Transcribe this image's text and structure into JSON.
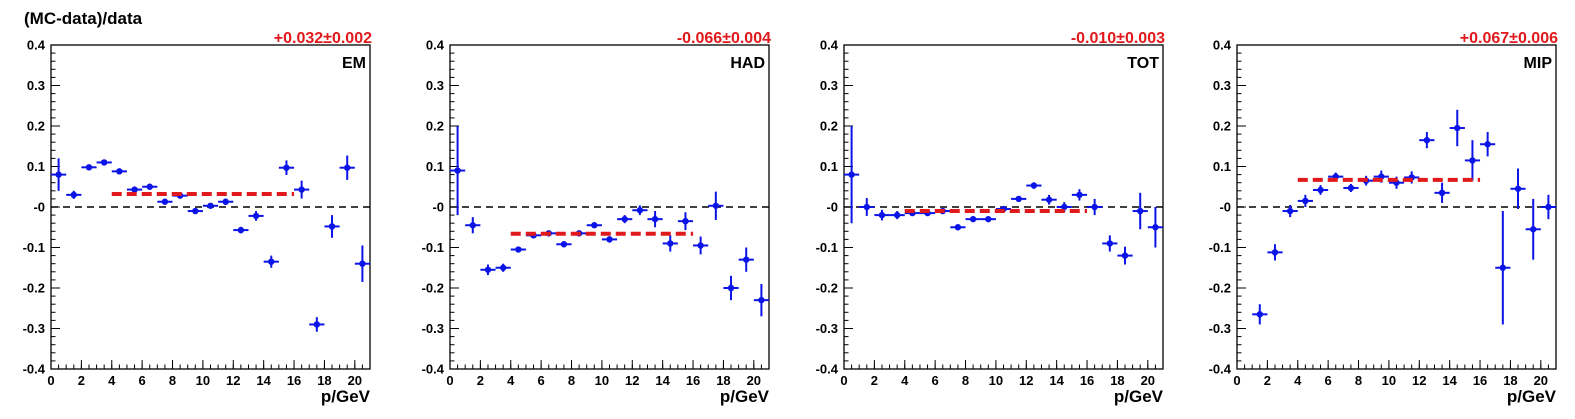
{
  "figure": {
    "ylabel": "(MC-data)/data",
    "xlabel": "p/GeV"
  },
  "colors": {
    "points": "#0a14e6",
    "fit": "#e0191c",
    "axis": "#000000"
  },
  "chart_data": [
    {
      "type": "scatter",
      "panel": "EM",
      "fit_label": "+0.032±0.002",
      "fit_value": 0.032,
      "fit_range": [
        4,
        16
      ],
      "xlim": [
        0,
        21
      ],
      "ylim": [
        -0.4,
        0.4
      ],
      "xticks": [
        0,
        2,
        4,
        6,
        8,
        10,
        12,
        14,
        16,
        18,
        20
      ],
      "yticks": [
        -0.4,
        -0.3,
        -0.2,
        -0.1,
        0,
        0.1,
        0.2,
        0.3,
        0.4
      ],
      "ytick_labels": [
        "-0.4",
        "-0.3",
        "-0.2",
        "-0.1",
        "-0",
        "0.1",
        "0.2",
        "0.3",
        "0.4"
      ],
      "points": [
        {
          "x": 0.5,
          "y": 0.08,
          "err": 0.04
        },
        {
          "x": 1.5,
          "y": 0.03,
          "err": 0.01
        },
        {
          "x": 2.5,
          "y": 0.098,
          "err": 0.005
        },
        {
          "x": 3.5,
          "y": 0.11,
          "err": 0.005
        },
        {
          "x": 4.5,
          "y": 0.088,
          "err": 0.005
        },
        {
          "x": 5.5,
          "y": 0.043,
          "err": 0.005
        },
        {
          "x": 6.5,
          "y": 0.05,
          "err": 0.005
        },
        {
          "x": 7.5,
          "y": 0.013,
          "err": 0.005
        },
        {
          "x": 8.5,
          "y": 0.028,
          "err": 0.005
        },
        {
          "x": 9.5,
          "y": -0.01,
          "err": 0.005
        },
        {
          "x": 10.5,
          "y": 0.003,
          "err": 0.006
        },
        {
          "x": 11.5,
          "y": 0.013,
          "err": 0.008
        },
        {
          "x": 12.5,
          "y": -0.057,
          "err": 0.008
        },
        {
          "x": 13.5,
          "y": -0.022,
          "err": 0.012
        },
        {
          "x": 14.5,
          "y": -0.135,
          "err": 0.015
        },
        {
          "x": 15.5,
          "y": 0.097,
          "err": 0.018
        },
        {
          "x": 16.5,
          "y": 0.043,
          "err": 0.022
        },
        {
          "x": 17.5,
          "y": -0.29,
          "err": 0.018
        },
        {
          "x": 18.5,
          "y": -0.048,
          "err": 0.028
        },
        {
          "x": 19.5,
          "y": 0.097,
          "err": 0.03
        },
        {
          "x": 20.5,
          "y": -0.14,
          "err": 0.045
        }
      ]
    },
    {
      "type": "scatter",
      "panel": "HAD",
      "fit_label": "-0.066±0.004",
      "fit_value": -0.066,
      "fit_range": [
        4,
        16
      ],
      "xlim": [
        0,
        21
      ],
      "ylim": [
        -0.4,
        0.4
      ],
      "xticks": [
        0,
        2,
        4,
        6,
        8,
        10,
        12,
        14,
        16,
        18,
        20
      ],
      "yticks": [
        -0.4,
        -0.3,
        -0.2,
        -0.1,
        0,
        0.1,
        0.2,
        0.3,
        0.4
      ],
      "ytick_labels": [
        "-0.4",
        "-0.3",
        "-0.2",
        "-0.1",
        "-0",
        "0.1",
        "0.2",
        "0.3",
        "0.4"
      ],
      "points": [
        {
          "x": 0.5,
          "y": 0.09,
          "err": 0.11
        },
        {
          "x": 1.5,
          "y": -0.045,
          "err": 0.02
        },
        {
          "x": 2.5,
          "y": -0.155,
          "err": 0.013
        },
        {
          "x": 3.5,
          "y": -0.15,
          "err": 0.01
        },
        {
          "x": 4.5,
          "y": -0.105,
          "err": 0.006
        },
        {
          "x": 5.5,
          "y": -0.07,
          "err": 0.005
        },
        {
          "x": 6.5,
          "y": -0.065,
          "err": 0.005
        },
        {
          "x": 7.5,
          "y": -0.092,
          "err": 0.005
        },
        {
          "x": 8.5,
          "y": -0.065,
          "err": 0.005
        },
        {
          "x": 9.5,
          "y": -0.045,
          "err": 0.006
        },
        {
          "x": 10.5,
          "y": -0.08,
          "err": 0.008
        },
        {
          "x": 11.5,
          "y": -0.03,
          "err": 0.01
        },
        {
          "x": 12.5,
          "y": -0.008,
          "err": 0.012
        },
        {
          "x": 13.5,
          "y": -0.03,
          "err": 0.02
        },
        {
          "x": 14.5,
          "y": -0.09,
          "err": 0.02
        },
        {
          "x": 15.5,
          "y": -0.035,
          "err": 0.022
        },
        {
          "x": 16.5,
          "y": -0.095,
          "err": 0.022
        },
        {
          "x": 17.5,
          "y": 0.003,
          "err": 0.035
        },
        {
          "x": 18.5,
          "y": -0.2,
          "err": 0.03
        },
        {
          "x": 19.5,
          "y": -0.13,
          "err": 0.03
        },
        {
          "x": 20.5,
          "y": -0.23,
          "err": 0.04
        }
      ]
    },
    {
      "type": "scatter",
      "panel": "TOT",
      "fit_label": "-0.010±0.003",
      "fit_value": -0.01,
      "fit_range": [
        4,
        16
      ],
      "xlim": [
        0,
        21
      ],
      "ylim": [
        -0.4,
        0.4
      ],
      "xticks": [
        0,
        2,
        4,
        6,
        8,
        10,
        12,
        14,
        16,
        18,
        20
      ],
      "yticks": [
        -0.4,
        -0.3,
        -0.2,
        -0.1,
        0,
        0.1,
        0.2,
        0.3,
        0.4
      ],
      "ytick_labels": [
        "-0.4",
        "-0.3",
        "-0.2",
        "-0.1",
        "-0",
        "0.1",
        "0.2",
        "0.3",
        "0.4"
      ],
      "points": [
        {
          "x": 0.5,
          "y": 0.08,
          "err": 0.12
        },
        {
          "x": 1.5,
          "y": 0.0,
          "err": 0.022
        },
        {
          "x": 2.5,
          "y": -0.02,
          "err": 0.013
        },
        {
          "x": 3.5,
          "y": -0.02,
          "err": 0.01
        },
        {
          "x": 4.5,
          "y": -0.015,
          "err": 0.006
        },
        {
          "x": 5.5,
          "y": -0.015,
          "err": 0.005
        },
        {
          "x": 6.5,
          "y": -0.01,
          "err": 0.005
        },
        {
          "x": 7.5,
          "y": -0.05,
          "err": 0.005
        },
        {
          "x": 8.5,
          "y": -0.03,
          "err": 0.005
        },
        {
          "x": 9.5,
          "y": -0.03,
          "err": 0.006
        },
        {
          "x": 10.5,
          "y": -0.005,
          "err": 0.005
        },
        {
          "x": 11.5,
          "y": 0.02,
          "err": 0.006
        },
        {
          "x": 12.5,
          "y": 0.053,
          "err": 0.008
        },
        {
          "x": 13.5,
          "y": 0.018,
          "err": 0.012
        },
        {
          "x": 14.5,
          "y": 0.0,
          "err": 0.012
        },
        {
          "x": 15.5,
          "y": 0.03,
          "err": 0.014
        },
        {
          "x": 16.5,
          "y": 0.0,
          "err": 0.02
        },
        {
          "x": 17.5,
          "y": -0.09,
          "err": 0.02
        },
        {
          "x": 18.5,
          "y": -0.12,
          "err": 0.022
        },
        {
          "x": 19.5,
          "y": -0.01,
          "err": 0.045
        },
        {
          "x": 20.5,
          "y": -0.05,
          "err": 0.05
        }
      ]
    },
    {
      "type": "scatter",
      "panel": "MIP",
      "fit_label": "+0.067±0.006",
      "fit_value": 0.067,
      "fit_range": [
        4,
        16
      ],
      "xlim": [
        0,
        21
      ],
      "ylim": [
        -0.4,
        0.4
      ],
      "xticks": [
        0,
        2,
        4,
        6,
        8,
        10,
        12,
        14,
        16,
        18,
        20
      ],
      "yticks": [
        -0.4,
        -0.3,
        -0.2,
        -0.1,
        0,
        0.1,
        0.2,
        0.3,
        0.4
      ],
      "ytick_labels": [
        "-0.4",
        "-0.3",
        "-0.2",
        "-0.1",
        "-0",
        "0.1",
        "0.2",
        "0.3",
        "0.4"
      ],
      "points": [
        {
          "x": 1.5,
          "y": -0.265,
          "err": 0.025
        },
        {
          "x": 2.5,
          "y": -0.112,
          "err": 0.02
        },
        {
          "x": 3.5,
          "y": -0.01,
          "err": 0.015
        },
        {
          "x": 4.5,
          "y": 0.015,
          "err": 0.015
        },
        {
          "x": 5.5,
          "y": 0.042,
          "err": 0.012
        },
        {
          "x": 6.5,
          "y": 0.075,
          "err": 0.01
        },
        {
          "x": 7.5,
          "y": 0.047,
          "err": 0.01
        },
        {
          "x": 8.5,
          "y": 0.065,
          "err": 0.012
        },
        {
          "x": 9.5,
          "y": 0.075,
          "err": 0.015
        },
        {
          "x": 10.5,
          "y": 0.06,
          "err": 0.015
        },
        {
          "x": 11.5,
          "y": 0.073,
          "err": 0.015
        },
        {
          "x": 12.5,
          "y": 0.165,
          "err": 0.02
        },
        {
          "x": 13.5,
          "y": 0.035,
          "err": 0.025
        },
        {
          "x": 14.5,
          "y": 0.195,
          "err": 0.045
        },
        {
          "x": 15.5,
          "y": 0.115,
          "err": 0.05
        },
        {
          "x": 16.5,
          "y": 0.155,
          "err": 0.03
        },
        {
          "x": 17.5,
          "y": -0.15,
          "err": 0.14
        },
        {
          "x": 18.5,
          "y": 0.045,
          "err": 0.05
        },
        {
          "x": 19.5,
          "y": -0.055,
          "err": 0.075
        },
        {
          "x": 20.5,
          "y": 0.0,
          "err": 0.03
        }
      ]
    }
  ]
}
